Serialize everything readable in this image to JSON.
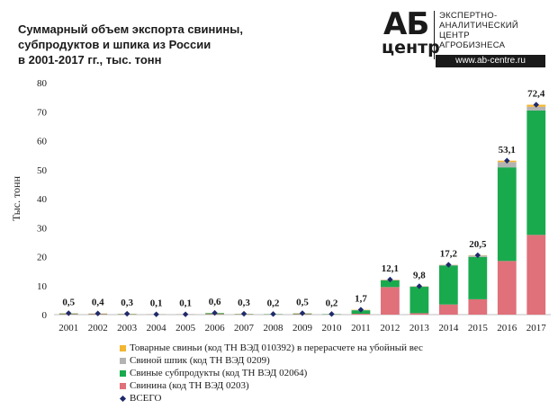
{
  "title_lines": [
    "Суммарный объем экспорта свинины,",
    "субпродуктов и шпика из России",
    "в 2001-2017 гг., тыс. тонн"
  ],
  "logo": {
    "mark_top": "АБ",
    "mark_bottom": "центр",
    "text_lines": [
      "ЭКСПЕРТНО-",
      "АНАЛИТИЧЕСКИЙ",
      "ЦЕНТР",
      "АГРОБИЗНЕСА"
    ],
    "url": "www.ab-centre.ru"
  },
  "chart_data": {
    "type": "bar",
    "stacked": true,
    "categories": [
      "2001",
      "2002",
      "2003",
      "2004",
      "2005",
      "2006",
      "2007",
      "2008",
      "2009",
      "2010",
      "2011",
      "2012",
      "2013",
      "2014",
      "2015",
      "2016",
      "2017"
    ],
    "ylabel": "Тыс. тонн",
    "ylim": [
      0,
      80
    ],
    "yticks": [
      0,
      10,
      20,
      30,
      40,
      50,
      60,
      70,
      80
    ],
    "grid": false,
    "legend_position": "bottom",
    "series": [
      {
        "name": "Свинина (код ТН ВЭД 0203)",
        "color": "#e0707a",
        "values": [
          0.2,
          0.2,
          0.1,
          0.05,
          0.05,
          0.2,
          0.1,
          0.05,
          0.2,
          0.05,
          0.3,
          9.5,
          0.5,
          3.5,
          5.3,
          18.5,
          27.5
        ]
      },
      {
        "name": "Свиные субпродукты (код ТН ВЭД 02064)",
        "color": "#1aaa4e",
        "values": [
          0.2,
          0.1,
          0.1,
          0.03,
          0.03,
          0.3,
          0.1,
          0.1,
          0.2,
          0.1,
          1.2,
          2.3,
          9.1,
          13.4,
          14.6,
          32.3,
          42.9
        ]
      },
      {
        "name": "Свиной шпик (код ТН ВЭД 0209)",
        "color": "#b3b3b3",
        "values": [
          0.05,
          0.05,
          0.05,
          0.01,
          0.01,
          0.05,
          0.05,
          0.03,
          0.05,
          0.03,
          0.1,
          0.2,
          0.15,
          0.25,
          0.5,
          1.8,
          1.3
        ]
      },
      {
        "name": "Товарные свиньи (код ТН ВЭД 010392)  в перерасчете на убойный вес",
        "color": "#f2b632",
        "values": [
          0.05,
          0.05,
          0.05,
          0.01,
          0.01,
          0.05,
          0.05,
          0.02,
          0.05,
          0.02,
          0.1,
          0.1,
          0.05,
          0.05,
          0.1,
          0.5,
          0.7
        ]
      }
    ],
    "totals": {
      "name": "ВСЕГО",
      "color": "#1f2a6b",
      "values": [
        0.5,
        0.4,
        0.3,
        0.1,
        0.1,
        0.6,
        0.3,
        0.2,
        0.5,
        0.2,
        1.7,
        12.1,
        9.8,
        17.2,
        20.5,
        53.1,
        72.4
      ],
      "labels": [
        "0,5",
        "0,4",
        "0,3",
        "0,1",
        "0,1",
        "0,6",
        "0,3",
        "0,2",
        "0,5",
        "0,2",
        "1,7",
        "12,1",
        "9,8",
        "17,2",
        "20,5",
        "53,1",
        "72,4"
      ]
    },
    "legend_order": [
      3,
      2,
      1,
      0,
      "totals"
    ]
  }
}
